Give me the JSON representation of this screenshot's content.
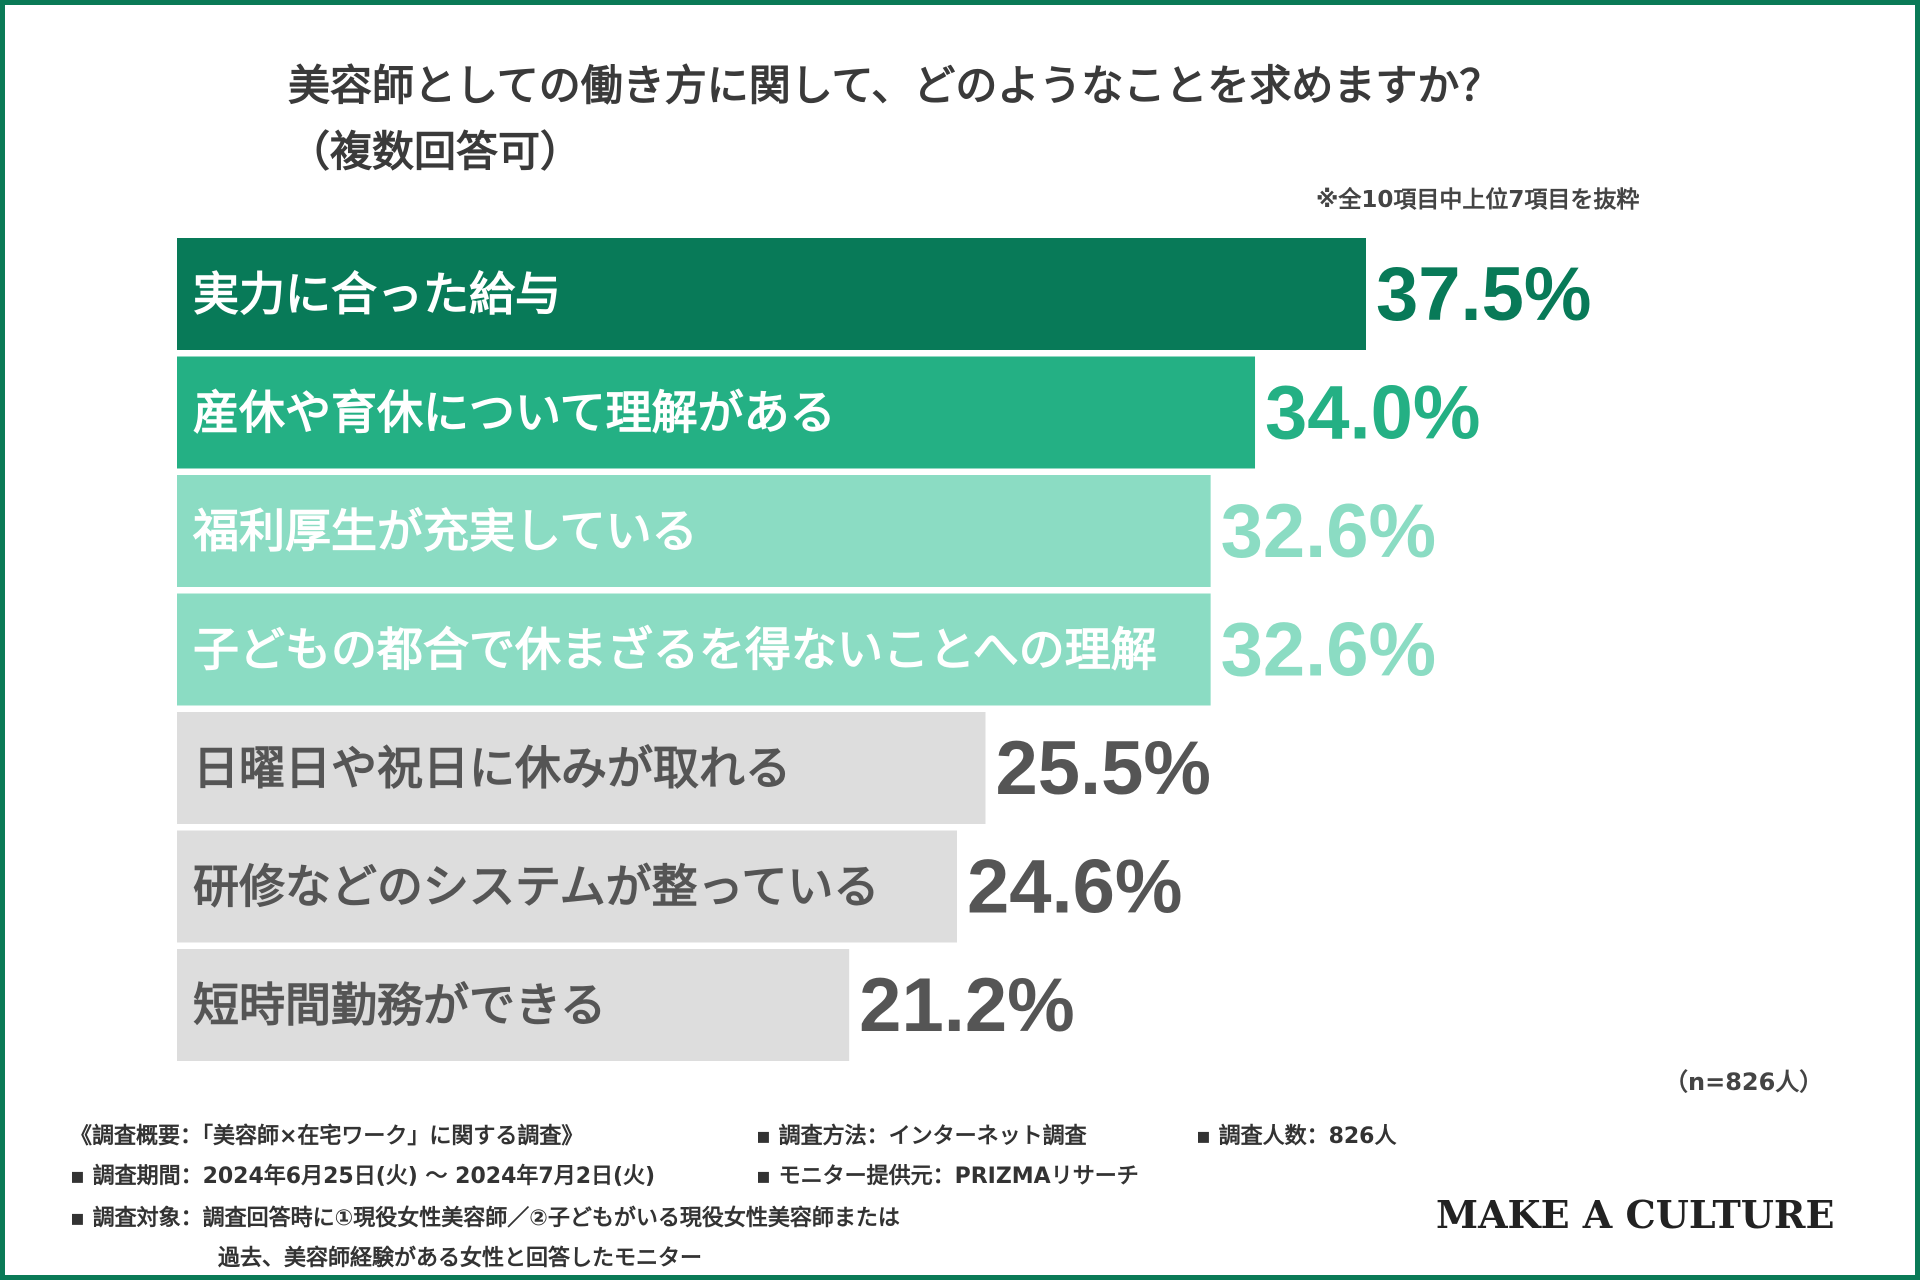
{
  "title": "美容師としての働き方に関して、どのようなことを求めますか？",
  "subtitle": "（複数回答可）",
  "note": "※全10項目中上位7項目を抜粋",
  "sample_size": "（n=826人）",
  "footer": {
    "summary": "《調査概要：「美容師×在宅ワーク」に関する調査》",
    "method": "▪ 調査方法：インターネット調査",
    "respondents": "▪ 調査人数：826人",
    "period": "▪ 調査期間：2024年6月25日(火) 〜 2024年7月2日(火)",
    "provider": "▪ モニター提供元：PRIZMAリサーチ",
    "target_line1": "▪ 調査対象：調査回答時に①現役女性美容師／②子どもがいる現役女性美容師または",
    "target_line2": "過去、美容師経験がある女性と回答したモニター"
  },
  "brand": "MAKE A CULTURE",
  "colors": {
    "frame": "#0a7a56",
    "dark_green": "#087a58",
    "mid_green": "#24b084",
    "light_green": "#8bdcc3",
    "gray_bar": "#dddddd",
    "gray_text": "#555555"
  },
  "chart_data": {
    "type": "bar",
    "orientation": "horizontal",
    "categories": [
      "実力に合った給与",
      "産休や育休について理解がある",
      "福利厚生が充実している",
      "子どもの都合で休まざるを得ないことへの理解",
      "日曜日や祝日に休みが取れる",
      "研修などのシステムが整っている",
      "短時間勤務ができる"
    ],
    "values": [
      37.5,
      34.0,
      32.6,
      32.6,
      25.5,
      24.6,
      21.2
    ],
    "value_labels": [
      "37.5%",
      "34.0%",
      "32.6%",
      "32.6%",
      "25.5%",
      "24.6%",
      "21.2%"
    ],
    "bar_colors": [
      "#087a58",
      "#24b084",
      "#8bdcc3",
      "#8bdcc3",
      "#dddddd",
      "#dddddd",
      "#dddddd"
    ],
    "value_colors": [
      "#087a58",
      "#24b084",
      "#8bdcc3",
      "#8bdcc3",
      "#555555",
      "#555555",
      "#555555"
    ],
    "label_colors": [
      "#ffffff",
      "#ffffff",
      "#ffffff",
      "#ffffff",
      "#555555",
      "#555555",
      "#555555"
    ],
    "unit": "%",
    "xlim": [
      0,
      37.5
    ],
    "grid": false,
    "legend": "none"
  }
}
